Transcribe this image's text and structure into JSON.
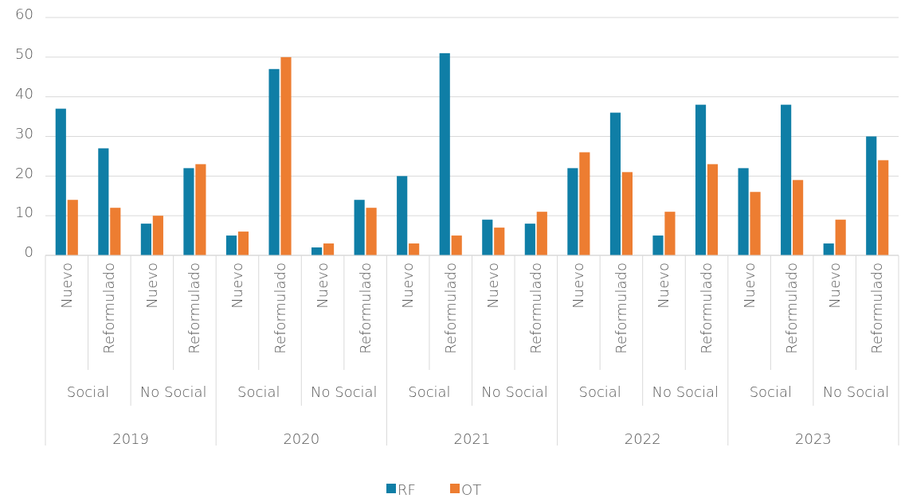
{
  "chart_data": {
    "type": "bar",
    "categories": [
      "Nuevo",
      "Reformulado",
      "Nuevo",
      "Reformulado",
      "Nuevo",
      "Reformulado",
      "Nuevo",
      "Reformulado",
      "Nuevo",
      "Reformulado",
      "Nuevo",
      "Reformulado",
      "Nuevo",
      "Reformulado",
      "Nuevo",
      "Reformulado",
      "Nuevo",
      "Reformulado",
      "Nuevo",
      "Reformulado"
    ],
    "series": [
      {
        "name": "RF",
        "color": "#0f7ea6",
        "values": [
          37,
          27,
          8,
          22,
          5,
          47,
          2,
          14,
          20,
          51,
          9,
          8,
          22,
          36,
          5,
          38,
          22,
          38,
          3,
          30
        ]
      },
      {
        "name": "OT",
        "color": "#ed7d31",
        "values": [
          14,
          12,
          10,
          23,
          6,
          50,
          3,
          12,
          3,
          5,
          7,
          11,
          26,
          21,
          11,
          23,
          16,
          19,
          9,
          24
        ]
      }
    ],
    "annotations": [
      "Social",
      "No Social",
      "Social",
      "No Social",
      "Social",
      "No Social",
      "Social",
      "No Social",
      "Social",
      "No Social",
      "2019",
      "2020",
      "2021",
      "2022",
      "2023"
    ],
    "ylim": [
      0,
      60
    ],
    "yticks": [
      0,
      10,
      20,
      30,
      40,
      50,
      60
    ],
    "grid": "y",
    "legend": "bottom"
  }
}
